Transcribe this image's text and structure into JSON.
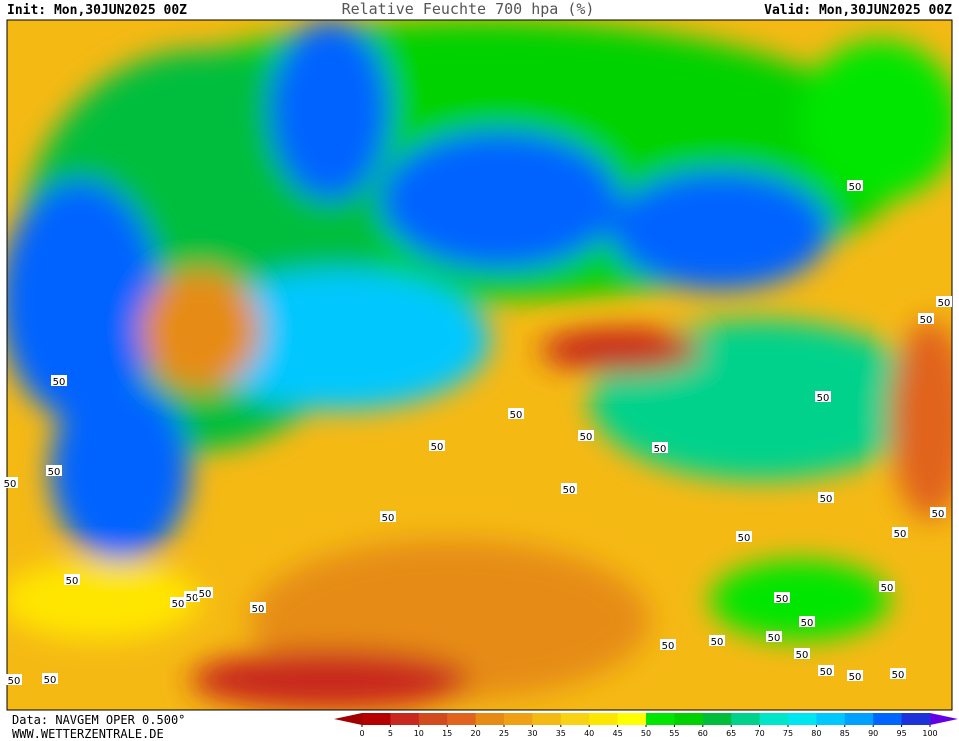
{
  "header": {
    "init": "Init: Mon,30JUN2025 00Z",
    "title": "Relative Feuchte 700 hpa (%)",
    "valid": "Valid: Mon,30JUN2025 00Z"
  },
  "footer": {
    "data": "Data: NAVGEM OPER 0.500°",
    "site": "WWW.WETTERZENTRALE.DE"
  },
  "colorbar": {
    "ticks": [
      0,
      5,
      10,
      15,
      20,
      25,
      30,
      35,
      40,
      45,
      50,
      55,
      60,
      65,
      70,
      75,
      80,
      85,
      90,
      95,
      100
    ],
    "colors": [
      "#b40000",
      "#c8281e",
      "#d24b1e",
      "#e1641e",
      "#e68c14",
      "#f0a014",
      "#f5b914",
      "#fad214",
      "#ffe600",
      "#ffff00",
      "#00e600",
      "#00d200",
      "#00be3c",
      "#00d28c",
      "#00e6c8",
      "#00e6f0",
      "#00c8ff",
      "#00a0ff",
      "#0064ff",
      "#1e32dc"
    ],
    "under_color": "#a00000",
    "over_color": "#6400e6"
  },
  "contour_labels": [
    "50",
    "50",
    "50",
    "50",
    "50",
    "50",
    "50",
    "50",
    "50",
    "50",
    "50",
    "50",
    "50",
    "50",
    "50",
    "50",
    "50",
    "50",
    "50",
    "50",
    "50",
    "50",
    "50",
    "50",
    "50",
    "50",
    "50",
    "50",
    "50",
    "50",
    "50",
    "50",
    "50",
    "50"
  ]
}
